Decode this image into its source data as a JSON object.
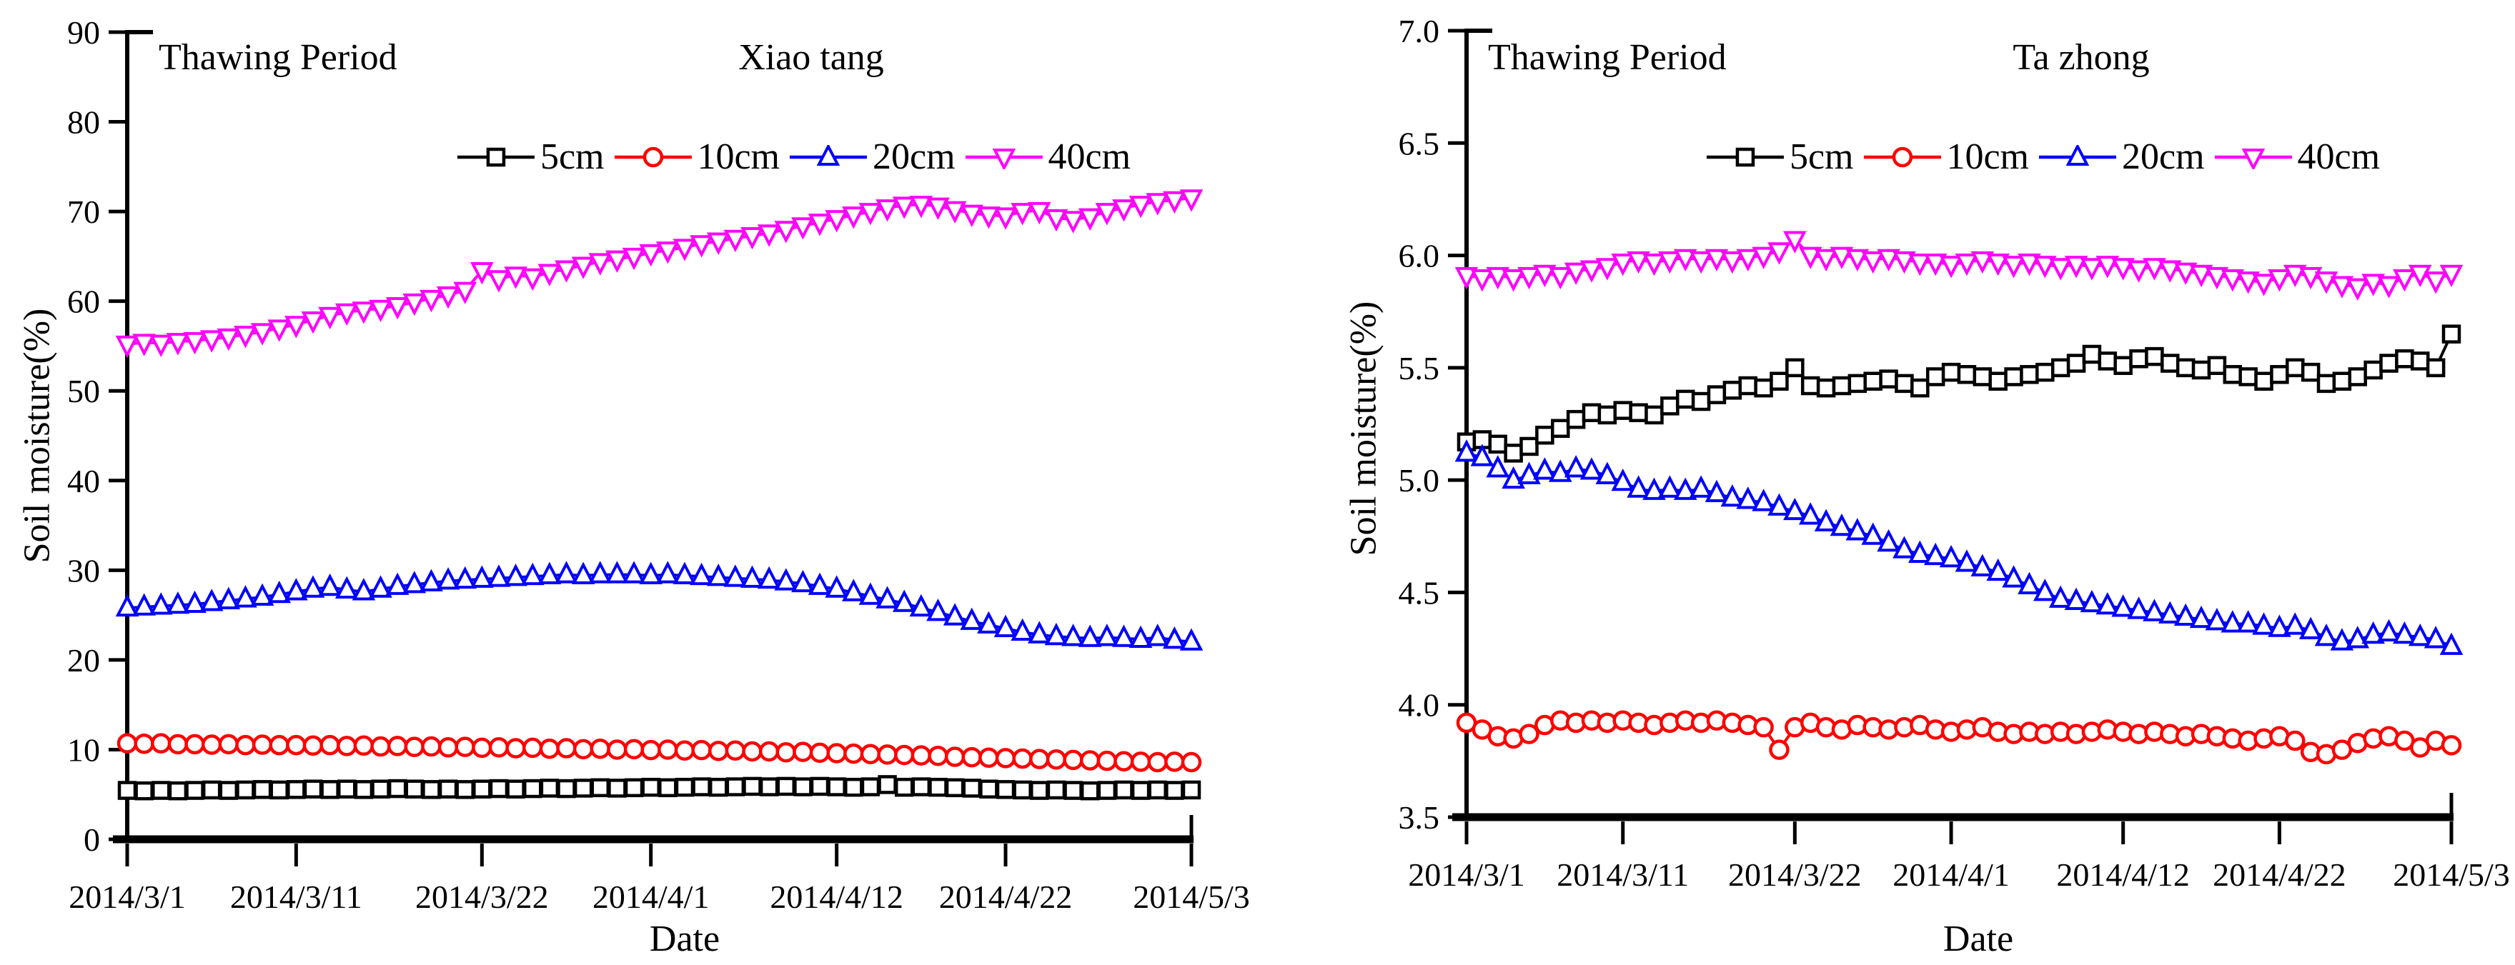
{
  "figure_caption_colors": {
    "black": "#000000",
    "red": "#ff0000",
    "blue": "#0000ff",
    "magenta": "#ff00ff"
  },
  "chart_data": [
    {
      "type": "line",
      "title": "Xiao tang",
      "annotation": "Thawing Period",
      "x_axis": {
        "label": "Date",
        "tick_labels": [
          "2014/3/1",
          "2014/3/11",
          "2014/3/22",
          "2014/4/1",
          "2014/4/12",
          "2014/4/22",
          "2014/5/3"
        ],
        "tick_days": [
          0,
          10,
          21,
          31,
          42,
          52,
          63
        ],
        "range_days": [
          0,
          63
        ]
      },
      "y_axis": {
        "label": "Soil moisture(%)",
        "range": [
          0,
          90
        ],
        "tick_values": [
          0,
          10,
          20,
          30,
          40,
          50,
          60,
          70,
          80,
          90
        ],
        "tick_labels": [
          "0",
          "10",
          "20",
          "30",
          "40",
          "50",
          "60",
          "70",
          "80",
          "90"
        ]
      },
      "legend_position": "top-center",
      "grid": false,
      "series": [
        {
          "name": "5cm",
          "color": "#000000",
          "marker": "square",
          "values": [
            5.45,
            5.4,
            5.45,
            5.4,
            5.45,
            5.5,
            5.45,
            5.5,
            5.55,
            5.5,
            5.55,
            5.6,
            5.55,
            5.6,
            5.55,
            5.6,
            5.65,
            5.6,
            5.55,
            5.6,
            5.55,
            5.6,
            5.65,
            5.6,
            5.65,
            5.7,
            5.65,
            5.7,
            5.75,
            5.7,
            5.75,
            5.8,
            5.75,
            5.8,
            5.85,
            5.8,
            5.85,
            5.9,
            5.85,
            5.9,
            5.85,
            5.9,
            5.85,
            5.8,
            5.85,
            6.1,
            5.8,
            5.85,
            5.8,
            5.75,
            5.7,
            5.6,
            5.55,
            5.5,
            5.45,
            5.5,
            5.45,
            5.4,
            5.45,
            5.5,
            5.45,
            5.5,
            5.45,
            5.5
          ]
        },
        {
          "name": "10cm",
          "color": "#ff0000",
          "marker": "circle",
          "values": [
            10.7,
            10.65,
            10.7,
            10.6,
            10.6,
            10.55,
            10.6,
            10.5,
            10.55,
            10.5,
            10.5,
            10.45,
            10.5,
            10.4,
            10.45,
            10.35,
            10.4,
            10.3,
            10.35,
            10.25,
            10.3,
            10.2,
            10.25,
            10.15,
            10.2,
            10.1,
            10.15,
            10.05,
            10.1,
            10.0,
            10.05,
            9.95,
            10.0,
            9.9,
            9.95,
            9.85,
            9.9,
            9.8,
            9.8,
            9.7,
            9.75,
            9.65,
            9.6,
            9.55,
            9.5,
            9.45,
            9.4,
            9.35,
            9.3,
            9.2,
            9.15,
            9.1,
            9.05,
            9.0,
            8.95,
            8.9,
            8.85,
            8.8,
            8.75,
            8.7,
            8.65,
            8.6,
            8.65,
            8.6
          ]
        },
        {
          "name": "20cm",
          "color": "#0000ff",
          "marker": "triangle-up",
          "values": [
            25.8,
            25.9,
            26.0,
            26.1,
            26.2,
            26.4,
            26.6,
            26.8,
            27.0,
            27.3,
            27.6,
            27.9,
            28.1,
            27.8,
            27.6,
            27.9,
            28.2,
            28.4,
            28.6,
            28.8,
            28.9,
            29.0,
            29.1,
            29.2,
            29.3,
            29.4,
            29.5,
            29.4,
            29.5,
            29.5,
            29.5,
            29.4,
            29.5,
            29.4,
            29.3,
            29.2,
            29.1,
            29.0,
            28.9,
            28.7,
            28.5,
            28.2,
            27.9,
            27.5,
            27.1,
            26.7,
            26.3,
            25.8,
            25.3,
            24.8,
            24.3,
            23.9,
            23.5,
            23.1,
            22.8,
            22.6,
            22.5,
            22.4,
            22.5,
            22.4,
            22.3,
            22.5,
            22.2,
            22.0
          ]
        },
        {
          "name": "40cm",
          "color": "#ff00ff",
          "marker": "triangle-down",
          "values": [
            55.2,
            55.4,
            55.3,
            55.5,
            55.6,
            55.8,
            56.0,
            56.3,
            56.6,
            57.0,
            57.4,
            57.9,
            58.4,
            58.8,
            59.0,
            59.2,
            59.5,
            59.9,
            60.3,
            60.7,
            61.2,
            63.4,
            62.5,
            62.9,
            62.7,
            63.2,
            63.6,
            64.0,
            64.4,
            64.7,
            65.0,
            65.4,
            65.7,
            66.0,
            66.4,
            66.7,
            67.0,
            67.3,
            67.6,
            68.0,
            68.4,
            68.8,
            69.2,
            69.6,
            70.0,
            70.4,
            70.7,
            70.8,
            70.6,
            70.2,
            69.8,
            69.6,
            69.5,
            70.0,
            70.1,
            69.3,
            69.1,
            69.4,
            70.0,
            70.4,
            70.8,
            71.1,
            71.3,
            71.5
          ]
        }
      ]
    },
    {
      "type": "line",
      "title": "Ta zhong",
      "annotation": "Thawing Period",
      "x_axis": {
        "label": "Date",
        "tick_labels": [
          "2014/3/1",
          "2014/3/11",
          "2014/3/22",
          "2014/4/1",
          "2014/4/12",
          "2014/4/22",
          "2014/5/3"
        ],
        "tick_days": [
          0,
          10,
          21,
          31,
          42,
          52,
          63
        ],
        "range_days": [
          0,
          63
        ]
      },
      "y_axis": {
        "label": "Soil moisture(%)",
        "range": [
          3.5,
          7.0
        ],
        "tick_values": [
          3.5,
          4.0,
          4.5,
          5.0,
          5.5,
          6.0,
          6.5,
          7.0
        ],
        "tick_labels": [
          "3.5",
          "4.0",
          "4.5",
          "5.0",
          "5.5",
          "6.0",
          "6.5",
          "7.0"
        ]
      },
      "legend_position": "top-center",
      "grid": false,
      "series": [
        {
          "name": "5cm",
          "color": "#000000",
          "marker": "square",
          "values": [
            5.17,
            5.18,
            5.16,
            5.12,
            5.15,
            5.2,
            5.23,
            5.27,
            5.3,
            5.29,
            5.31,
            5.3,
            5.29,
            5.33,
            5.36,
            5.35,
            5.38,
            5.4,
            5.42,
            5.41,
            5.44,
            5.5,
            5.42,
            5.41,
            5.42,
            5.43,
            5.44,
            5.45,
            5.43,
            5.41,
            5.46,
            5.48,
            5.47,
            5.46,
            5.44,
            5.46,
            5.47,
            5.48,
            5.5,
            5.52,
            5.56,
            5.53,
            5.51,
            5.54,
            5.55,
            5.52,
            5.5,
            5.49,
            5.51,
            5.47,
            5.46,
            5.44,
            5.47,
            5.5,
            5.48,
            5.43,
            5.44,
            5.46,
            5.49,
            5.52,
            5.54,
            5.53,
            5.5,
            5.65
          ]
        },
        {
          "name": "10cm",
          "color": "#ff0000",
          "marker": "circle",
          "values": [
            3.92,
            3.89,
            3.86,
            3.85,
            3.87,
            3.91,
            3.93,
            3.92,
            3.93,
            3.92,
            3.93,
            3.92,
            3.91,
            3.92,
            3.93,
            3.92,
            3.93,
            3.92,
            3.91,
            3.9,
            3.8,
            3.9,
            3.92,
            3.9,
            3.89,
            3.91,
            3.9,
            3.89,
            3.9,
            3.91,
            3.89,
            3.88,
            3.89,
            3.9,
            3.88,
            3.87,
            3.88,
            3.87,
            3.88,
            3.87,
            3.88,
            3.89,
            3.88,
            3.87,
            3.88,
            3.87,
            3.86,
            3.87,
            3.86,
            3.85,
            3.84,
            3.85,
            3.86,
            3.84,
            3.79,
            3.78,
            3.8,
            3.83,
            3.85,
            3.86,
            3.84,
            3.81,
            3.84,
            3.82
          ]
        },
        {
          "name": "20cm",
          "color": "#0000ff",
          "marker": "triangle-up",
          "values": [
            5.12,
            5.1,
            5.05,
            5.0,
            5.02,
            5.04,
            5.03,
            5.05,
            5.04,
            5.02,
            4.99,
            4.96,
            4.95,
            4.96,
            4.95,
            4.96,
            4.94,
            4.92,
            4.91,
            4.9,
            4.88,
            4.86,
            4.84,
            4.81,
            4.79,
            4.77,
            4.75,
            4.72,
            4.69,
            4.67,
            4.66,
            4.65,
            4.63,
            4.61,
            4.59,
            4.56,
            4.53,
            4.5,
            4.47,
            4.46,
            4.45,
            4.44,
            4.43,
            4.42,
            4.41,
            4.4,
            4.39,
            4.38,
            4.37,
            4.36,
            4.36,
            4.35,
            4.34,
            4.35,
            4.33,
            4.3,
            4.28,
            4.29,
            4.31,
            4.32,
            4.31,
            4.3,
            4.29,
            4.26
          ]
        },
        {
          "name": "40cm",
          "color": "#ff00ff",
          "marker": "triangle-down",
          "values": [
            5.91,
            5.9,
            5.91,
            5.9,
            5.91,
            5.92,
            5.91,
            5.93,
            5.94,
            5.95,
            5.97,
            5.98,
            5.97,
            5.98,
            5.99,
            5.98,
            5.99,
            5.98,
            5.99,
            6.0,
            6.02,
            6.07,
            6.0,
            5.99,
            6.0,
            5.99,
            5.98,
            5.99,
            5.98,
            5.97,
            5.97,
            5.96,
            5.97,
            5.98,
            5.97,
            5.96,
            5.97,
            5.96,
            5.95,
            5.96,
            5.95,
            5.96,
            5.95,
            5.94,
            5.95,
            5.94,
            5.93,
            5.92,
            5.91,
            5.9,
            5.89,
            5.88,
            5.9,
            5.92,
            5.91,
            5.89,
            5.87,
            5.86,
            5.88,
            5.87,
            5.9,
            5.92,
            5.89,
            5.92
          ]
        }
      ]
    }
  ]
}
